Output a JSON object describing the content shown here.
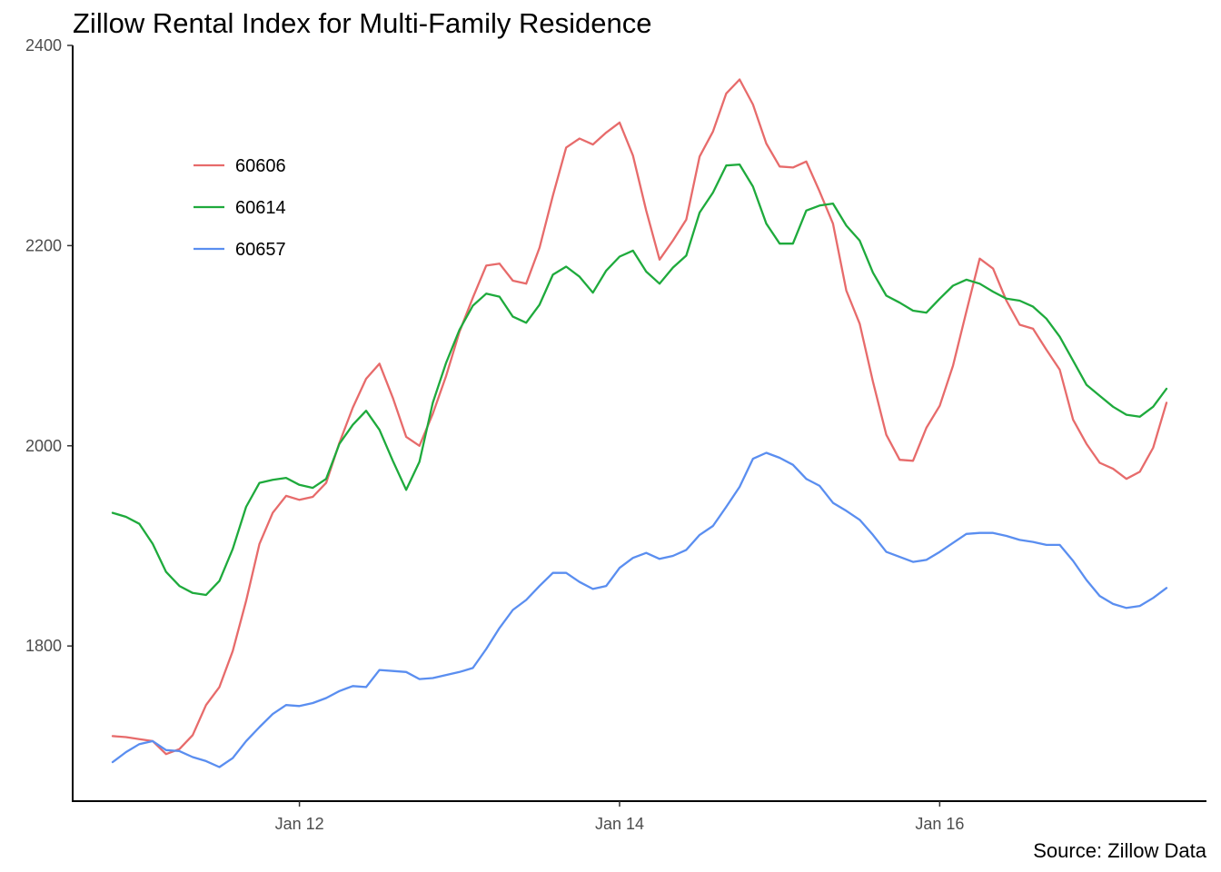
{
  "chart_data": {
    "type": "line",
    "title": "Zillow Rental Index for Multi-Family Residence",
    "caption": "Source: Zillow Data",
    "xlabel": "",
    "ylabel": "",
    "x_start": "2010-11",
    "x_step": "1 month",
    "xlim": [
      "2010-08",
      "2017-09"
    ],
    "ylim": [
      1645,
      2400
    ],
    "x_ticks": [
      {
        "date": "2012-01",
        "label": "Jan 12"
      },
      {
        "date": "2014-01",
        "label": "Jan 14"
      },
      {
        "date": "2016-01",
        "label": "Jan 16"
      }
    ],
    "y_ticks": [
      1800,
      2000,
      2200,
      2400
    ],
    "grid": false,
    "legend_position": "top-left",
    "series": [
      {
        "name": "60606",
        "color": "#E76B6B",
        "values": [
          1710,
          1709,
          1707,
          1705,
          1692,
          1697,
          1711,
          1741,
          1759,
          1795,
          1845,
          1902,
          1933,
          1950,
          1946,
          1949,
          1963,
          2003,
          2038,
          2067,
          2082,
          2048,
          2009,
          2000,
          2032,
          2070,
          2114,
          2148,
          2180,
          2182,
          2165,
          2162,
          2198,
          2250,
          2298,
          2307,
          2301,
          2313,
          2323,
          2290,
          2235,
          2186,
          2205,
          2226,
          2289,
          2314,
          2352,
          2366,
          2341,
          2302,
          2279,
          2278,
          2284,
          2254,
          2222,
          2155,
          2122,
          2064,
          2011,
          1986,
          1985,
          2018,
          2040,
          2080,
          2134,
          2187,
          2177,
          2145,
          2121,
          2117,
          2096,
          2076,
          2026,
          2002,
          1983,
          1977,
          1967,
          1974,
          1998,
          2043
        ]
      },
      {
        "name": "60614",
        "color": "#1EAA3C",
        "values": [
          1933,
          1929,
          1922,
          1902,
          1874,
          1860,
          1853,
          1851,
          1865,
          1897,
          1939,
          1963,
          1966,
          1968,
          1961,
          1958,
          1967,
          2002,
          2021,
          2035,
          2016,
          1985,
          1956,
          1984,
          2043,
          2083,
          2116,
          2140,
          2152,
          2149,
          2129,
          2123,
          2141,
          2171,
          2179,
          2169,
          2153,
          2175,
          2189,
          2195,
          2174,
          2162,
          2178,
          2190,
          2233,
          2253,
          2280,
          2281,
          2259,
          2222,
          2202,
          2202,
          2235,
          2240,
          2242,
          2220,
          2205,
          2173,
          2150,
          2143,
          2135,
          2133,
          2147,
          2160,
          2166,
          2162,
          2154,
          2147,
          2145,
          2139,
          2127,
          2109,
          2085,
          2061,
          2050,
          2039,
          2031,
          2029,
          2039,
          2057
        ]
      },
      {
        "name": "60657",
        "color": "#5A8EF0",
        "values": [
          1684,
          1694,
          1702,
          1705,
          1696,
          1695,
          1689,
          1685,
          1679,
          1688,
          1705,
          1719,
          1732,
          1741,
          1740,
          1743,
          1748,
          1755,
          1760,
          1759,
          1776,
          1775,
          1774,
          1767,
          1768,
          1771,
          1774,
          1778,
          1797,
          1818,
          1836,
          1846,
          1860,
          1873,
          1873,
          1864,
          1857,
          1860,
          1878,
          1888,
          1893,
          1887,
          1890,
          1896,
          1911,
          1920,
          1939,
          1959,
          1987,
          1993,
          1988,
          1981,
          1967,
          1960,
          1943,
          1935,
          1926,
          1911,
          1894,
          1889,
          1884,
          1886,
          1894,
          1903,
          1912,
          1913,
          1913,
          1910,
          1906,
          1904,
          1901,
          1901,
          1885,
          1866,
          1850,
          1842,
          1838,
          1840,
          1848,
          1858
        ]
      }
    ]
  }
}
